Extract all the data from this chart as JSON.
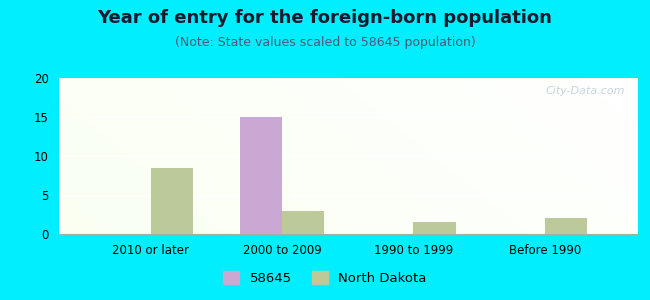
{
  "title": "Year of entry for the foreign-born population",
  "subtitle": "(Note: State values scaled to 58645 population)",
  "categories": [
    "2010 or later",
    "2000 to 2009",
    "1990 to 1999",
    "Before 1990"
  ],
  "values_58645": [
    0,
    15,
    0,
    0
  ],
  "values_nd": [
    8.5,
    3,
    1.5,
    2
  ],
  "color_58645": "#c9a8d4",
  "color_nd": "#bcc99a",
  "background_outer": "#00eeff",
  "ylim": [
    0,
    20
  ],
  "yticks": [
    0,
    5,
    10,
    15,
    20
  ],
  "legend_58645": "58645",
  "legend_nd": "North Dakota",
  "bar_width": 0.32,
  "title_fontsize": 13,
  "subtitle_fontsize": 9,
  "tick_fontsize": 8.5,
  "watermark_text": "City-Data.com"
}
